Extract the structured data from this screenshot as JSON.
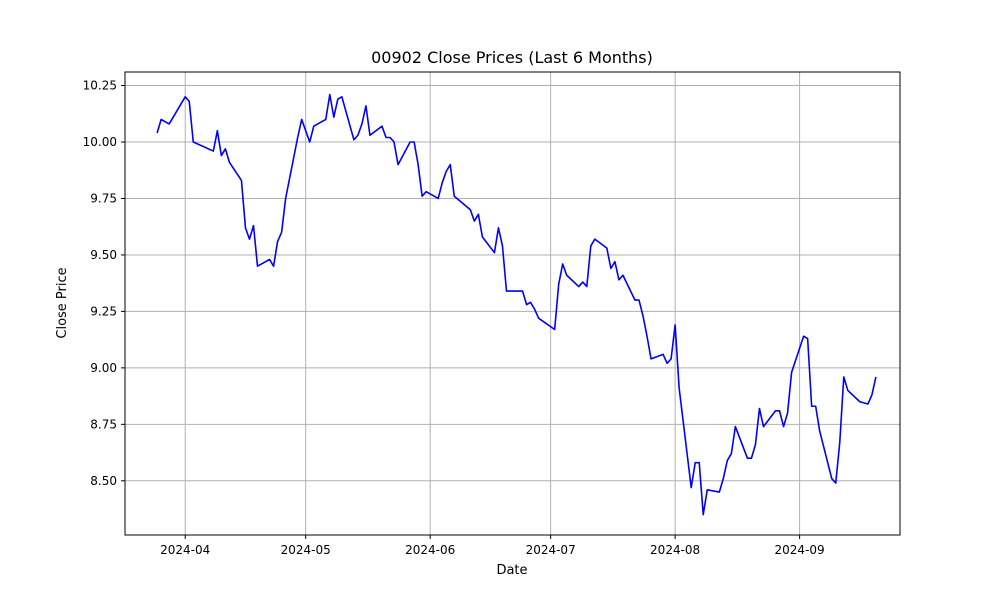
{
  "chart_data": {
    "type": "line",
    "title": "00902 Close Prices (Last 6 Months)",
    "xlabel": "Date",
    "ylabel": "Close Price",
    "x_ticks": [
      "2024-04-01",
      "2024-05-01",
      "2024-06-01",
      "2024-07-01",
      "2024-08-01",
      "2024-09-01"
    ],
    "x_tick_labels": [
      "2024-04",
      "2024-05",
      "2024-06",
      "2024-07",
      "2024-08",
      "2024-09"
    ],
    "y_ticks": [
      8.5,
      8.75,
      9.0,
      9.25,
      9.5,
      9.75,
      10.0,
      10.25
    ],
    "y_tick_labels": [
      "8.50",
      "8.75",
      "9.00",
      "9.25",
      "9.50",
      "9.75",
      "10.00",
      "10.25"
    ],
    "xlim": [
      "2024-03-17",
      "2024-09-26"
    ],
    "ylim": [
      8.26,
      10.31
    ],
    "grid": true,
    "color": "#0000ff",
    "series": [
      {
        "x": [
          "2024-03-25",
          "2024-03-26",
          "2024-03-28",
          "2024-04-01",
          "2024-04-02",
          "2024-04-03",
          "2024-04-08",
          "2024-04-09",
          "2024-04-10",
          "2024-04-11",
          "2024-04-12",
          "2024-04-15",
          "2024-04-16",
          "2024-04-17",
          "2024-04-18",
          "2024-04-19",
          "2024-04-22",
          "2024-04-23",
          "2024-04-24",
          "2024-04-25",
          "2024-04-26",
          "2024-04-29",
          "2024-04-30",
          "2024-05-02",
          "2024-05-03",
          "2024-05-06",
          "2024-05-07",
          "2024-05-08",
          "2024-05-09",
          "2024-05-10",
          "2024-05-13",
          "2024-05-14",
          "2024-05-15",
          "2024-05-16",
          "2024-05-17",
          "2024-05-20",
          "2024-05-21",
          "2024-05-22",
          "2024-05-23",
          "2024-05-24",
          "2024-05-27",
          "2024-05-28",
          "2024-05-29",
          "2024-05-30",
          "2024-05-31",
          "2024-06-03",
          "2024-06-04",
          "2024-06-05",
          "2024-06-06",
          "2024-06-07",
          "2024-06-11",
          "2024-06-12",
          "2024-06-13",
          "2024-06-14",
          "2024-06-17",
          "2024-06-18",
          "2024-06-19",
          "2024-06-20",
          "2024-06-21",
          "2024-06-24",
          "2024-06-25",
          "2024-06-26",
          "2024-06-27",
          "2024-06-28",
          "2024-07-02",
          "2024-07-03",
          "2024-07-04",
          "2024-07-05",
          "2024-07-08",
          "2024-07-09",
          "2024-07-10",
          "2024-07-11",
          "2024-07-12",
          "2024-07-15",
          "2024-07-16",
          "2024-07-17",
          "2024-07-18",
          "2024-07-19",
          "2024-07-22",
          "2024-07-23",
          "2024-07-24",
          "2024-07-25",
          "2024-07-26",
          "2024-07-29",
          "2024-07-30",
          "2024-07-31",
          "2024-08-01",
          "2024-08-02",
          "2024-08-05",
          "2024-08-06",
          "2024-08-07",
          "2024-08-08",
          "2024-08-09",
          "2024-08-12",
          "2024-08-13",
          "2024-08-14",
          "2024-08-15",
          "2024-08-16",
          "2024-08-19",
          "2024-08-20",
          "2024-08-21",
          "2024-08-22",
          "2024-08-23",
          "2024-08-26",
          "2024-08-27",
          "2024-08-28",
          "2024-08-29",
          "2024-08-30",
          "2024-09-02",
          "2024-09-03",
          "2024-09-04",
          "2024-09-05",
          "2024-09-06",
          "2024-09-09",
          "2024-09-10",
          "2024-09-11",
          "2024-09-12",
          "2024-09-13",
          "2024-09-16",
          "2024-09-18",
          "2024-09-19",
          "2024-09-20"
        ],
        "y": [
          10.04,
          10.1,
          10.08,
          10.2,
          10.18,
          10.0,
          9.96,
          10.05,
          9.94,
          9.97,
          9.91,
          9.83,
          9.62,
          9.57,
          9.63,
          9.45,
          9.48,
          9.45,
          9.56,
          9.6,
          9.75,
          10.02,
          10.1,
          10.0,
          10.07,
          10.1,
          10.21,
          10.11,
          10.19,
          10.2,
          10.01,
          10.03,
          10.08,
          10.16,
          10.03,
          10.07,
          10.02,
          10.02,
          10.0,
          9.9,
          10.0,
          10.0,
          9.9,
          9.76,
          9.78,
          9.75,
          9.82,
          9.87,
          9.9,
          9.76,
          9.7,
          9.65,
          9.68,
          9.58,
          9.51,
          9.62,
          9.54,
          9.34,
          9.34,
          9.34,
          9.28,
          9.29,
          9.26,
          9.22,
          9.17,
          9.37,
          9.46,
          9.41,
          9.36,
          9.38,
          9.36,
          9.54,
          9.57,
          9.53,
          9.44,
          9.47,
          9.39,
          9.41,
          9.3,
          9.3,
          9.23,
          9.14,
          9.04,
          9.06,
          9.02,
          9.04,
          9.19,
          8.91,
          8.47,
          8.58,
          8.58,
          8.35,
          8.46,
          8.45,
          8.51,
          8.59,
          8.62,
          8.74,
          8.6,
          8.6,
          8.66,
          8.82,
          8.74,
          8.81,
          8.81,
          8.74,
          8.8,
          8.98,
          9.14,
          9.13,
          8.83,
          8.83,
          8.72,
          8.51,
          8.49,
          8.67,
          8.96,
          8.9,
          8.85,
          8.84,
          8.88,
          8.96
        ]
      }
    ]
  }
}
